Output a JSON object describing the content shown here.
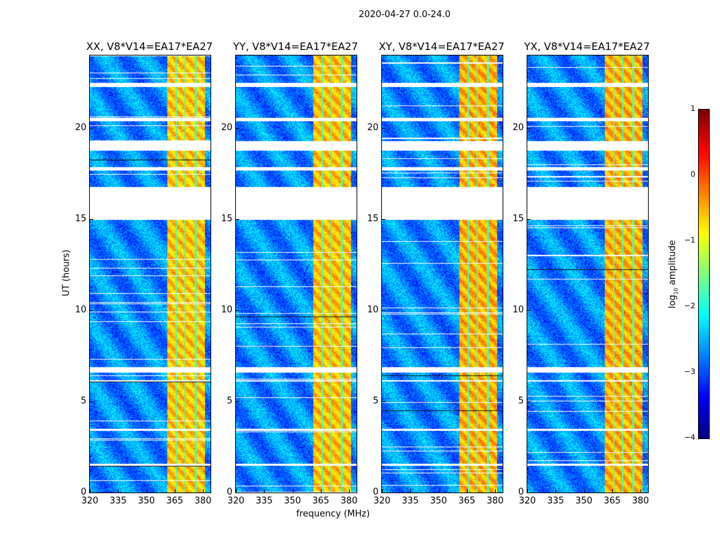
{
  "suptitle": "2020-04-27 0.0-24.0",
  "chart_data": {
    "type": "heatmap",
    "panels": [
      {
        "title": "XX, V8*V14=EA17*EA27",
        "band_scale": 1.0
      },
      {
        "title": "YY, V8*V14=EA17*EA27",
        "band_scale": 0.95
      },
      {
        "title": "XY, V8*V14=EA17*EA27",
        "band_scale": 0.8
      },
      {
        "title": "YX, V8*V14=EA17*EA27",
        "band_scale": 0.8
      }
    ],
    "xlabel": "frequency (MHz)",
    "ylabel": "UT (hours)",
    "xlim": [
      320,
      384
    ],
    "ylim": [
      0,
      24
    ],
    "xticks": [
      "320",
      "335",
      "350",
      "365",
      "380"
    ],
    "xtick_values": [
      320,
      335,
      350,
      365,
      380
    ],
    "yticks": [
      "0",
      "5",
      "10",
      "15",
      "20"
    ],
    "ytick_values": [
      0,
      5,
      10,
      15,
      20
    ],
    "colorbar": {
      "label": "log10 amplitude",
      "label_main": "log",
      "label_sub": "10",
      "label_tail": " amplitude",
      "range": [
        -4,
        1
      ],
      "ticks": [
        "1",
        "0",
        "−1",
        "−2",
        "−3",
        "−4"
      ],
      "tick_values": [
        1,
        0,
        -1,
        -2,
        -3,
        -4
      ],
      "colormap": "jet"
    },
    "background_level": -2.7,
    "rfi_band_MHz": [
      361,
      381
    ],
    "rfi_band_level": -0.6,
    "rfi_notches_MHz": [
      365.6,
      370.4,
      376
    ],
    "flagged_UT_ranges": [
      [
        15.0,
        16.8
      ],
      [
        18.8,
        19.3
      ],
      [
        17.7,
        17.9
      ],
      [
        20.4,
        20.6
      ],
      [
        6.6,
        6.9
      ],
      [
        22.3,
        22.5
      ],
      [
        6.1,
        6.2
      ],
      [
        3.4,
        3.5
      ],
      [
        1.5,
        1.6
      ]
    ]
  }
}
